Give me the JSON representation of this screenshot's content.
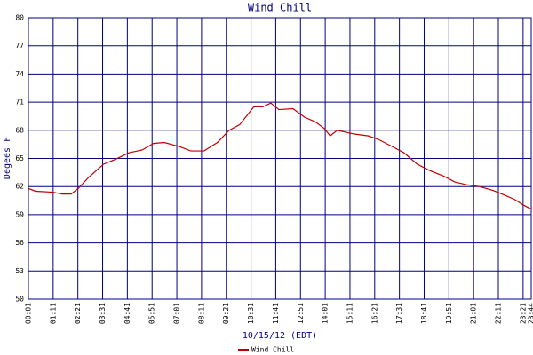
{
  "chart_data": {
    "type": "line",
    "title": "Wind Chill",
    "xlabel": "10/15/12 (EDT)",
    "ylabel": "Degees F",
    "x": [
      1,
      21,
      71,
      96,
      122,
      142,
      172,
      214,
      247,
      285,
      323,
      355,
      385,
      426,
      461,
      498,
      536,
      569,
      599,
      639,
      664,
      687,
      710,
      750,
      782,
      813,
      838,
      855,
      875,
      923,
      963,
      993,
      1039,
      1064,
      1101,
      1137,
      1177,
      1207,
      1240,
      1277,
      1315,
      1348,
      1378,
      1403,
      1424
    ],
    "series": [
      {
        "name": "Wind Chill",
        "color": "#c00000",
        "values": [
          61.8,
          61.5,
          61.4,
          61.2,
          61.2,
          61.8,
          63.0,
          64.4,
          64.9,
          65.6,
          65.9,
          66.6,
          66.7,
          66.3,
          65.8,
          65.8,
          66.7,
          68.0,
          68.6,
          70.5,
          70.5,
          70.9,
          70.2,
          70.3,
          69.4,
          68.9,
          68.2,
          67.4,
          68.0,
          67.6,
          67.4,
          67.0,
          66.1,
          65.6,
          64.4,
          63.7,
          63.1,
          62.5,
          62.2,
          62.0,
          61.6,
          61.1,
          60.6,
          60.0,
          59.6
        ]
      }
    ],
    "xlim": [
      1,
      1424
    ],
    "xticks": [
      {
        "value": 1,
        "label": "00:01"
      },
      {
        "value": 71,
        "label": "01:11"
      },
      {
        "value": 141,
        "label": "02:21"
      },
      {
        "value": 211,
        "label": "03:31"
      },
      {
        "value": 281,
        "label": "04:41"
      },
      {
        "value": 351,
        "label": "05:51"
      },
      {
        "value": 421,
        "label": "07:01"
      },
      {
        "value": 491,
        "label": "08:11"
      },
      {
        "value": 561,
        "label": "09:21"
      },
      {
        "value": 631,
        "label": "10:31"
      },
      {
        "value": 701,
        "label": "11:41"
      },
      {
        "value": 771,
        "label": "12:51"
      },
      {
        "value": 841,
        "label": "14:01"
      },
      {
        "value": 911,
        "label": "15:11"
      },
      {
        "value": 981,
        "label": "16:21"
      },
      {
        "value": 1051,
        "label": "17:31"
      },
      {
        "value": 1121,
        "label": "18:41"
      },
      {
        "value": 1191,
        "label": "19:51"
      },
      {
        "value": 1261,
        "label": "21:01"
      },
      {
        "value": 1331,
        "label": "22:11"
      },
      {
        "value": 1401,
        "label": "23:21"
      },
      {
        "value": 1424,
        "label": "23:44"
      }
    ],
    "ylim": [
      50,
      80
    ],
    "yticks": [
      50,
      53,
      56,
      59,
      62,
      65,
      68,
      71,
      74,
      77,
      80
    ],
    "grid": true,
    "grid_color": "#000080"
  }
}
